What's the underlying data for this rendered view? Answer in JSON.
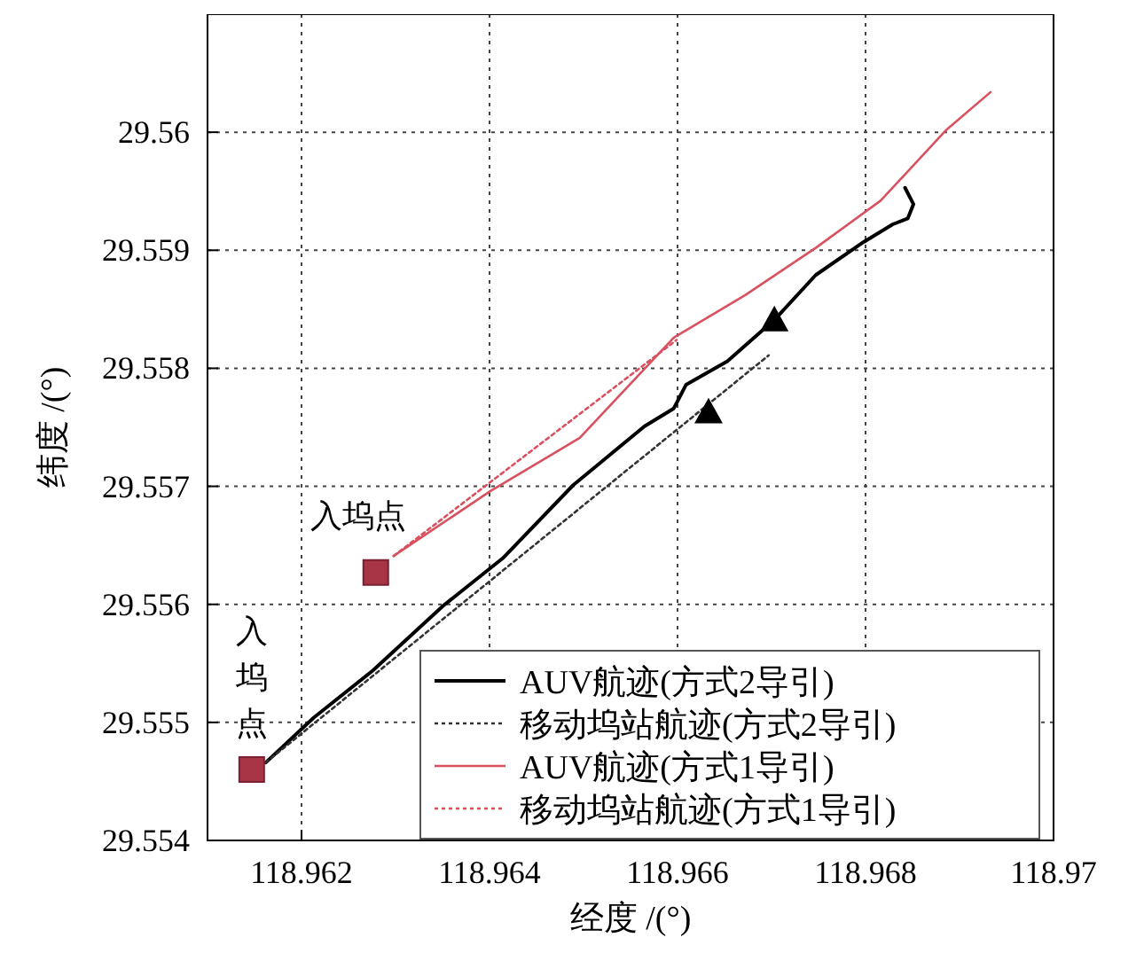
{
  "chart_data": {
    "type": "line",
    "xlabel": "经度 /(°)",
    "ylabel": "纬度 /(°)",
    "xlim": [
      118.961,
      118.97
    ],
    "ylim": [
      29.554,
      29.561
    ],
    "xticks": [
      118.962,
      118.964,
      118.966,
      118.968,
      118.97
    ],
    "yticks": [
      29.554,
      29.555,
      29.556,
      29.557,
      29.558,
      29.559,
      29.56
    ],
    "grid": true,
    "legend": "bottom right",
    "series": [
      {
        "name": "AUV航迹(方式2导引)",
        "color": "#000000",
        "line_style": "solid",
        "x": [
          118.96162,
          118.96213,
          118.96276,
          118.96351,
          118.96414,
          118.96489,
          118.96527,
          118.96565,
          118.96596,
          118.96609,
          118.96653,
          118.96703,
          118.96747,
          118.96798,
          118.96829,
          118.96845,
          118.96851,
          118.96842
        ],
        "values": [
          29.55466,
          29.55504,
          29.55544,
          29.55599,
          29.55639,
          29.55701,
          29.55726,
          29.55751,
          29.55766,
          29.55786,
          29.55806,
          29.55841,
          29.55879,
          29.55907,
          29.55922,
          29.55927,
          29.55939,
          29.55953
        ]
      },
      {
        "name": "移动坞站航迹(方式2导引)",
        "color": "#333333",
        "line_style": "dotted",
        "x": [
          118.96162,
          118.96697
        ],
        "values": [
          29.55466,
          29.55811
        ]
      },
      {
        "name": "AUV航迹(方式1导引)",
        "color": "#d9505f",
        "line_style": "solid",
        "x": [
          118.96298,
          118.96401,
          118.96496,
          118.96596,
          118.96672,
          118.96747,
          118.96816,
          118.96886,
          118.96933
        ],
        "values": [
          29.55641,
          29.55696,
          29.55741,
          29.55826,
          29.55862,
          29.55902,
          29.55942,
          29.56002,
          29.56034
        ]
      },
      {
        "name": "移动坞站航迹(方式1导引)",
        "color": "#d9505f",
        "line_style": "dotted",
        "x": [
          118.96298,
          118.96599
        ],
        "values": [
          29.55641,
          29.55824
        ]
      },
      {
        "type": "scatter",
        "color": "#000000",
        "marker": "triangle",
        "x": [
          118.96703,
          118.96633
        ],
        "values": [
          29.55841,
          29.55763
        ]
      },
      {
        "type": "scatter",
        "color": "#a83545",
        "marker": "square",
        "x": [
          118.96147,
          118.96279
        ],
        "values": [
          29.5546,
          29.55627
        ]
      }
    ],
    "annotations": [
      {
        "text": "入坞点",
        "x": 118.96279,
        "y": 29.55627
      },
      {
        "text": "入坞点",
        "x": 118.96147,
        "y": 29.5546
      }
    ]
  }
}
